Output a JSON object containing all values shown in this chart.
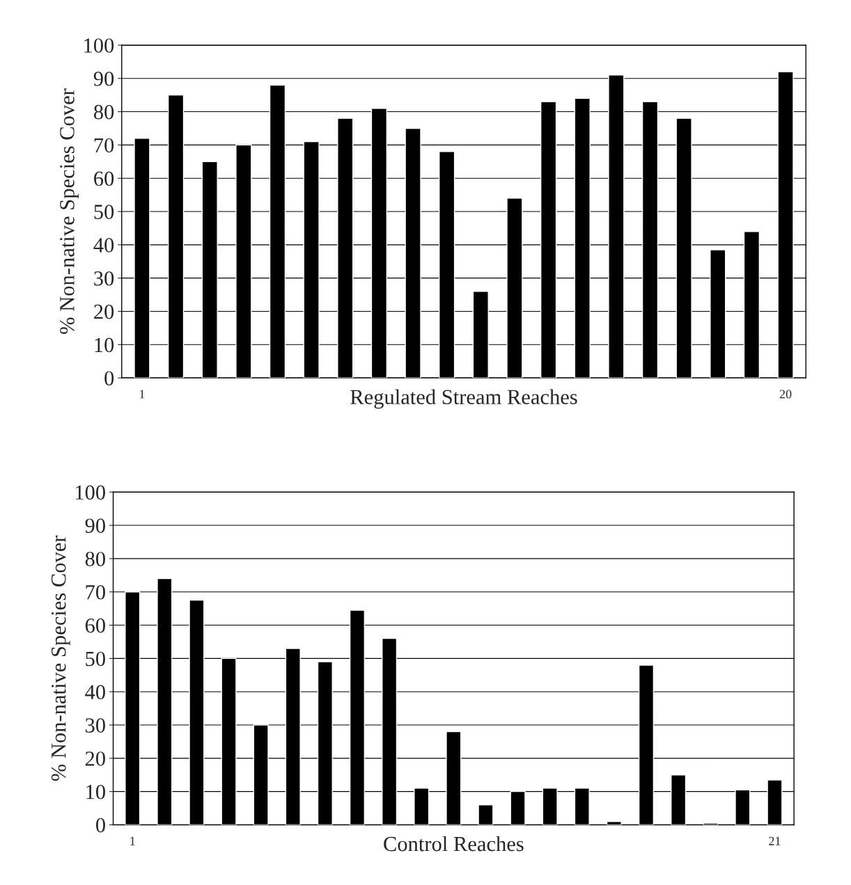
{
  "chart_data": [
    {
      "type": "bar",
      "xlabel": "Regulated Stream Reaches",
      "ylabel": "% Non-native Species Cover",
      "categories": [
        "1",
        null,
        null,
        null,
        null,
        null,
        null,
        null,
        null,
        null,
        null,
        null,
        null,
        null,
        null,
        null,
        null,
        null,
        null,
        "20"
      ],
      "values": [
        72,
        85,
        65,
        70,
        88,
        71,
        78,
        81,
        75,
        68,
        26,
        54,
        83,
        84,
        91,
        83,
        78,
        38.5,
        44,
        92
      ],
      "color": "#000000",
      "ylim": [
        0,
        100
      ],
      "yticks": [
        0,
        10,
        20,
        30,
        40,
        50,
        60,
        70,
        80,
        90,
        100
      ],
      "grid": "y"
    },
    {
      "type": "bar",
      "xlabel": "Control Reaches",
      "ylabel": "% Non-native Species Cover",
      "categories": [
        "1",
        null,
        null,
        null,
        null,
        null,
        null,
        null,
        null,
        null,
        null,
        null,
        null,
        null,
        null,
        null,
        null,
        null,
        null,
        null,
        "21"
      ],
      "values": [
        70,
        74,
        67.5,
        50,
        30,
        53,
        49,
        64.5,
        56,
        11,
        28,
        6,
        10,
        11,
        11,
        1,
        48,
        15,
        0.5,
        10.5,
        13.5
      ],
      "color": "#000000",
      "ylim": [
        0,
        100
      ],
      "yticks": [
        0,
        10,
        20,
        30,
        40,
        50,
        60,
        70,
        80,
        90,
        100
      ],
      "grid": "y"
    }
  ]
}
